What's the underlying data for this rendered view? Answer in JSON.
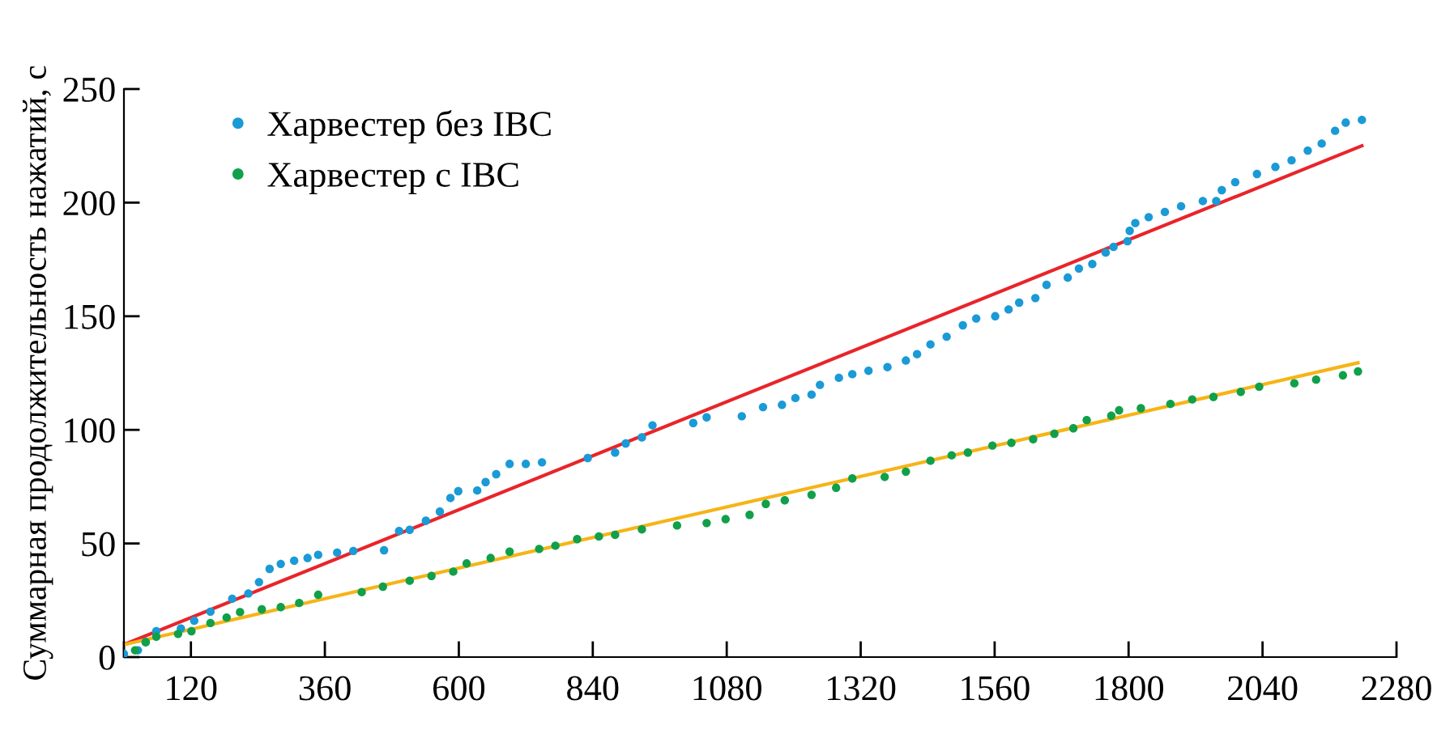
{
  "chart_data": {
    "type": "scatter",
    "ylabel": "Суммарная продолжительность нажатий, с",
    "xlim": [
      0,
      2280
    ],
    "xticks": [
      {
        "value": 0,
        "label": null
      },
      120,
      360,
      600,
      840,
      1080,
      1320,
      1560,
      1800,
      2040,
      2280
    ],
    "ylim": [
      0,
      250
    ],
    "yticks": [
      0,
      50,
      100,
      150,
      200,
      250
    ],
    "grid": false,
    "legend": "top left",
    "series": [
      {
        "name": "Харвестер без IBC",
        "color": "#1a9ad6",
        "marker": "circle",
        "x": [
          0,
          25,
          39,
          58,
          102,
          126,
          155,
          194,
          223,
          242,
          261,
          281,
          305,
          329,
          348,
          382,
          411,
          466,
          493,
          512,
          541,
          566,
          585,
          599,
          633,
          648,
          667,
          691,
          720,
          749,
          831,
          880,
          899,
          928,
          947,
          1020,
          1044,
          1107,
          1145,
          1179,
          1203,
          1232,
          1247,
          1281,
          1305,
          1334,
          1368,
          1401,
          1421,
          1445,
          1474,
          1503,
          1527,
          1561,
          1585,
          1604,
          1633,
          1653,
          1691,
          1711,
          1735,
          1759,
          1773,
          1798,
          1802,
          1812,
          1836,
          1865,
          1894,
          1933,
          1957,
          1967,
          1991,
          2030,
          2063,
          2092,
          2121,
          2146,
          2170,
          2189,
          2218
        ],
        "values": [
          1.4,
          3,
          6.6,
          11.4,
          12.6,
          16,
          20,
          25.7,
          28,
          33,
          38.8,
          41,
          42.4,
          43.6,
          45,
          46,
          46.7,
          47,
          55.5,
          56,
          60,
          64,
          70,
          73,
          73.3,
          77,
          80.5,
          85,
          85,
          85.7,
          87.6,
          90,
          94,
          96.7,
          102,
          103,
          105.5,
          106,
          110,
          111,
          114,
          115.5,
          119.8,
          122.9,
          124.5,
          126,
          127.6,
          130.5,
          133.3,
          137.6,
          141,
          146,
          149,
          150,
          153,
          156,
          158,
          163.8,
          167,
          171,
          173,
          178,
          180.5,
          183,
          187.6,
          191,
          193.6,
          195.9,
          198.4,
          200.7,
          200.7,
          205.5,
          209,
          212.6,
          215.7,
          218.6,
          222.9,
          226,
          231.6,
          235.2,
          236.4
        ]
      },
      {
        "name": "Харвестер с IBC",
        "color": "#10a04a",
        "marker": "circle",
        "x": [
          20,
          39,
          58,
          97,
          121,
          155,
          184,
          208,
          247,
          281,
          314,
          348,
          426,
          464,
          512,
          551,
          590,
          614,
          657,
          691,
          744,
          773,
          812,
          851,
          880,
          928,
          991,
          1044,
          1078,
          1121,
          1150,
          1184,
          1232,
          1276,
          1305,
          1363,
          1401,
          1445,
          1483,
          1512,
          1556,
          1590,
          1629,
          1667,
          1701,
          1725,
          1769,
          1783,
          1822,
          1875,
          1914,
          1952,
          2001,
          2034,
          2097,
          2136,
          2184,
          2211
        ],
        "values": [
          3,
          6.6,
          9,
          10.2,
          11.4,
          15,
          17.4,
          19.8,
          21,
          22,
          23.8,
          27.4,
          28.6,
          31,
          33.6,
          35.7,
          37.6,
          41.2,
          43.6,
          46.4,
          47.6,
          49,
          51.9,
          53.1,
          53.8,
          56.2,
          57.9,
          59,
          60.7,
          62.6,
          67.4,
          69,
          71.4,
          74.5,
          78.6,
          79.3,
          81.6,
          86.4,
          88.8,
          90,
          93.1,
          94.3,
          95.9,
          98.3,
          100.7,
          104.3,
          106.2,
          108.6,
          109.5,
          111.4,
          113.4,
          114.5,
          116.7,
          119,
          120.5,
          122.1,
          124,
          125.7
        ]
      },
      {
        "type": "line",
        "marker": "none",
        "color": "#e8252a",
        "x": [
          0,
          2218
        ],
        "values": [
          5.5,
          225
        ]
      },
      {
        "type": "line",
        "marker": "none",
        "color": "#f6b417",
        "x": [
          0,
          2211
        ],
        "values": [
          5.5,
          129.5
        ]
      }
    ]
  }
}
